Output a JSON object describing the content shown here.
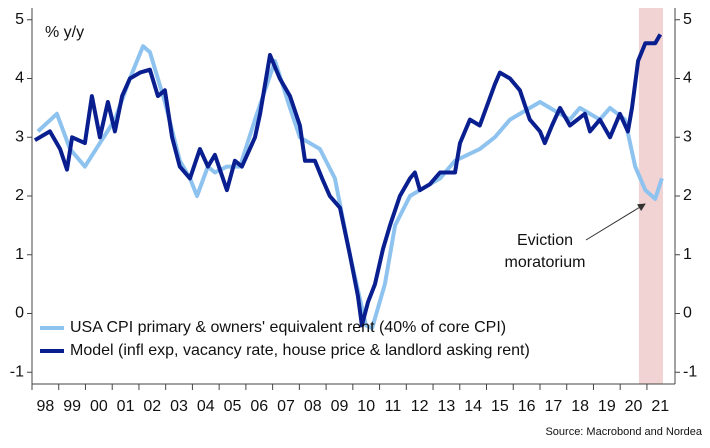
{
  "chart_data": {
    "type": "line",
    "unit_label": "% y/y",
    "source": "Source: Macrobond and Nordea",
    "annotation": [
      "Eviction",
      "moratorium"
    ],
    "shade": [
      2020.7,
      2021.6
    ],
    "shade_color": "#f2d3d3",
    "xlim": [
      1998,
      2022.05
    ],
    "xticks": [
      {
        "value": 1998,
        "label": "98"
      },
      {
        "value": 1999,
        "label": "99"
      },
      {
        "value": 2000,
        "label": "00"
      },
      {
        "value": 2001,
        "label": "01"
      },
      {
        "value": 2002,
        "label": "02"
      },
      {
        "value": 2003,
        "label": "03"
      },
      {
        "value": 2004,
        "label": "04"
      },
      {
        "value": 2005,
        "label": "05"
      },
      {
        "value": 2006,
        "label": "06"
      },
      {
        "value": 2007,
        "label": "07"
      },
      {
        "value": 2008,
        "label": "08"
      },
      {
        "value": 2009,
        "label": "09"
      },
      {
        "value": 2010,
        "label": "10"
      },
      {
        "value": 2011,
        "label": "11"
      },
      {
        "value": 2012,
        "label": "12"
      },
      {
        "value": 2013,
        "label": "13"
      },
      {
        "value": 2014,
        "label": "14"
      },
      {
        "value": 2015,
        "label": "15"
      },
      {
        "value": 2016,
        "label": "16"
      },
      {
        "value": 2017,
        "label": "17"
      },
      {
        "value": 2018,
        "label": "18"
      },
      {
        "value": 2019,
        "label": "19"
      },
      {
        "value": 2020,
        "label": "20"
      },
      {
        "value": 2021,
        "label": "21"
      }
    ],
    "ylim": [
      -1.2,
      5.2
    ],
    "yticks": [
      -1,
      0,
      1,
      2,
      3,
      4,
      5
    ],
    "y2lim": [
      -1.2,
      5.2
    ],
    "y2ticks": [
      -1,
      0,
      1,
      2,
      3,
      4,
      5
    ],
    "grid": false,
    "legend": "lower left",
    "series": [
      {
        "name": "USA CPI primary & owners' equivalent rent (40% of core CPI)",
        "color": "#8ec3f0",
        "x": [
          1998.22,
          1998.93,
          1999.42,
          1999.98,
          2000.54,
          2001.1,
          2001.66,
          2002.15,
          2002.41,
          2002.97,
          2003.53,
          2003.91,
          2004.17,
          2004.58,
          2004.84,
          2005.29,
          2005.78,
          2006.34,
          2007.09,
          2007.65,
          2008.02,
          2008.77,
          2009.33,
          2009.89,
          2010.49,
          2010.72,
          2011.2,
          2011.58,
          2012.14,
          2012.88,
          2013.26,
          2013.82,
          2014.75,
          2015.31,
          2015.88,
          2017.0,
          2017.37,
          2018.12,
          2018.49,
          2019.24,
          2019.62,
          2020.18,
          2020.56,
          2020.94,
          2021.31,
          2021.56
        ],
        "values": [
          3.1,
          3.4,
          2.8,
          2.5,
          2.9,
          3.3,
          4.0,
          4.55,
          4.45,
          3.6,
          2.6,
          2.3,
          2.0,
          2.5,
          2.4,
          2.5,
          2.5,
          3.3,
          4.3,
          3.5,
          3.0,
          2.8,
          2.3,
          1.0,
          -0.2,
          -0.25,
          0.5,
          1.5,
          2.0,
          2.2,
          2.3,
          2.6,
          2.8,
          3.0,
          3.3,
          3.6,
          3.5,
          3.3,
          3.5,
          3.3,
          3.5,
          3.3,
          2.5,
          2.1,
          1.95,
          2.3
        ]
      },
      {
        "name": "Model (infl exp, vacancy rate, house price & landlord asking rent)",
        "color": "#0a1f8f",
        "x": [
          1998.11,
          1998.67,
          1999.05,
          1999.31,
          1999.5,
          1999.98,
          2000.24,
          2000.54,
          2000.84,
          2001.1,
          2001.37,
          2001.66,
          2002.04,
          2002.41,
          2002.71,
          2002.97,
          2003.24,
          2003.53,
          2003.91,
          2004.28,
          2004.58,
          2004.84,
          2005.29,
          2005.59,
          2005.85,
          2006.34,
          2006.53,
          2006.9,
          2007.27,
          2007.65,
          2008.02,
          2008.21,
          2008.58,
          2008.85,
          2009.14,
          2009.52,
          2009.89,
          2010.19,
          2010.34,
          2010.57,
          2010.83,
          2011.13,
          2011.39,
          2011.76,
          2012.14,
          2012.32,
          2012.51,
          2012.88,
          2013.26,
          2013.82,
          2014.01,
          2014.38,
          2014.75,
          2015.31,
          2015.5,
          2015.88,
          2016.25,
          2016.62,
          2017.0,
          2017.18,
          2017.45,
          2017.75,
          2018.12,
          2018.68,
          2018.87,
          2019.24,
          2019.62,
          2019.99,
          2020.29,
          2020.44,
          2020.67,
          2020.94,
          2021.31,
          2021.5
        ],
        "values": [
          2.95,
          3.1,
          2.8,
          2.45,
          3.0,
          2.9,
          3.7,
          3.0,
          3.6,
          3.1,
          3.7,
          4.0,
          4.1,
          4.15,
          3.7,
          3.8,
          3.0,
          2.5,
          2.3,
          2.8,
          2.5,
          2.7,
          2.1,
          2.6,
          2.5,
          3.0,
          3.4,
          4.4,
          4.0,
          3.7,
          3.2,
          2.6,
          2.6,
          2.3,
          2.0,
          1.8,
          1.0,
          0.3,
          -0.2,
          0.2,
          0.5,
          1.1,
          1.5,
          2.0,
          2.3,
          2.4,
          2.1,
          2.2,
          2.4,
          2.4,
          2.9,
          3.3,
          3.2,
          3.9,
          4.1,
          4.0,
          3.8,
          3.3,
          3.1,
          2.9,
          3.2,
          3.5,
          3.2,
          3.4,
          3.1,
          3.3,
          3.0,
          3.4,
          3.1,
          3.5,
          4.3,
          4.6,
          4.6,
          4.75
        ]
      }
    ]
  }
}
